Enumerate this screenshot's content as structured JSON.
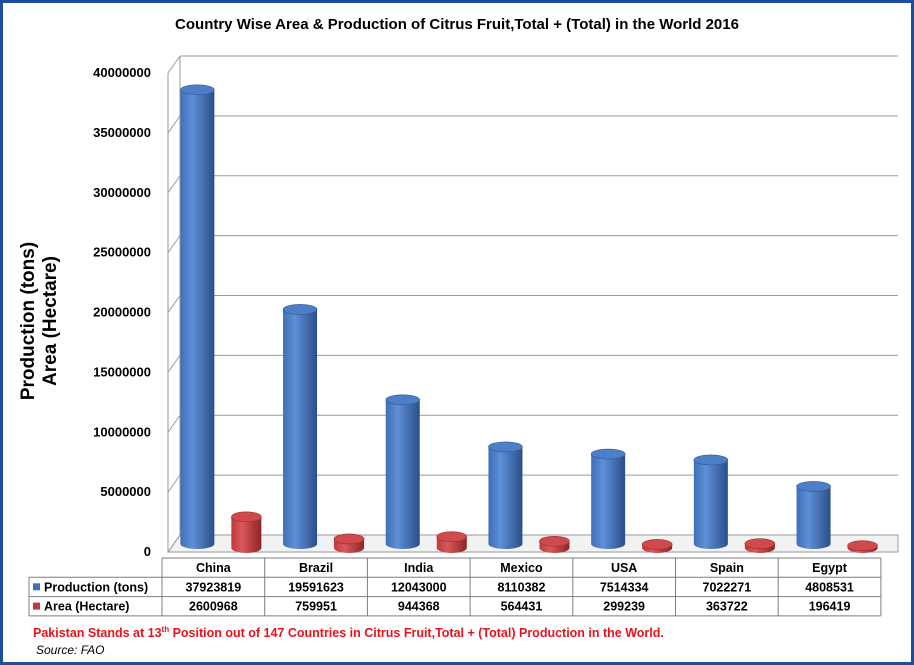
{
  "chart_data": {
    "type": "bar",
    "title": "Country Wise Area & Production of Citrus Fruit,Total + (Total) in the World 2016",
    "ylabel_lines": [
      "Production (tons)",
      "Area (Hectare)"
    ],
    "ylim": [
      0,
      40000000
    ],
    "yticks": [
      "0",
      "5000000",
      "10000000",
      "15000000",
      "20000000",
      "25000000",
      "30000000",
      "35000000",
      "40000000"
    ],
    "grid": true,
    "categories": [
      "China",
      "Brazil",
      "India",
      "Mexico",
      "USA",
      "Spain",
      "Egypt"
    ],
    "series": [
      {
        "name": "Production (tons)",
        "color": "#3e6fb8",
        "values": [
          37923819,
          19591623,
          12043000,
          8110382,
          7514334,
          7022271,
          4808531
        ],
        "labels": [
          "37923819",
          "19591623",
          "12043000",
          "8110382",
          "7514334",
          "7022271",
          "4808531"
        ]
      },
      {
        "name": "Area (Hectare)",
        "color": "#c0393b",
        "values": [
          2600968,
          759951,
          944368,
          564431,
          299239,
          363722,
          196419
        ],
        "labels": [
          "2600968",
          "759951",
          "944368",
          "564431",
          "299239",
          "363722",
          "196419"
        ]
      }
    ],
    "legend": "data-table"
  },
  "footnote": {
    "before": "Pakistan Stands at 13",
    "sup": "th",
    "after": " Position out of 147 Countries in Citrus Fruit,Total + (Total) Production in the World."
  },
  "source": "Source: FAO"
}
